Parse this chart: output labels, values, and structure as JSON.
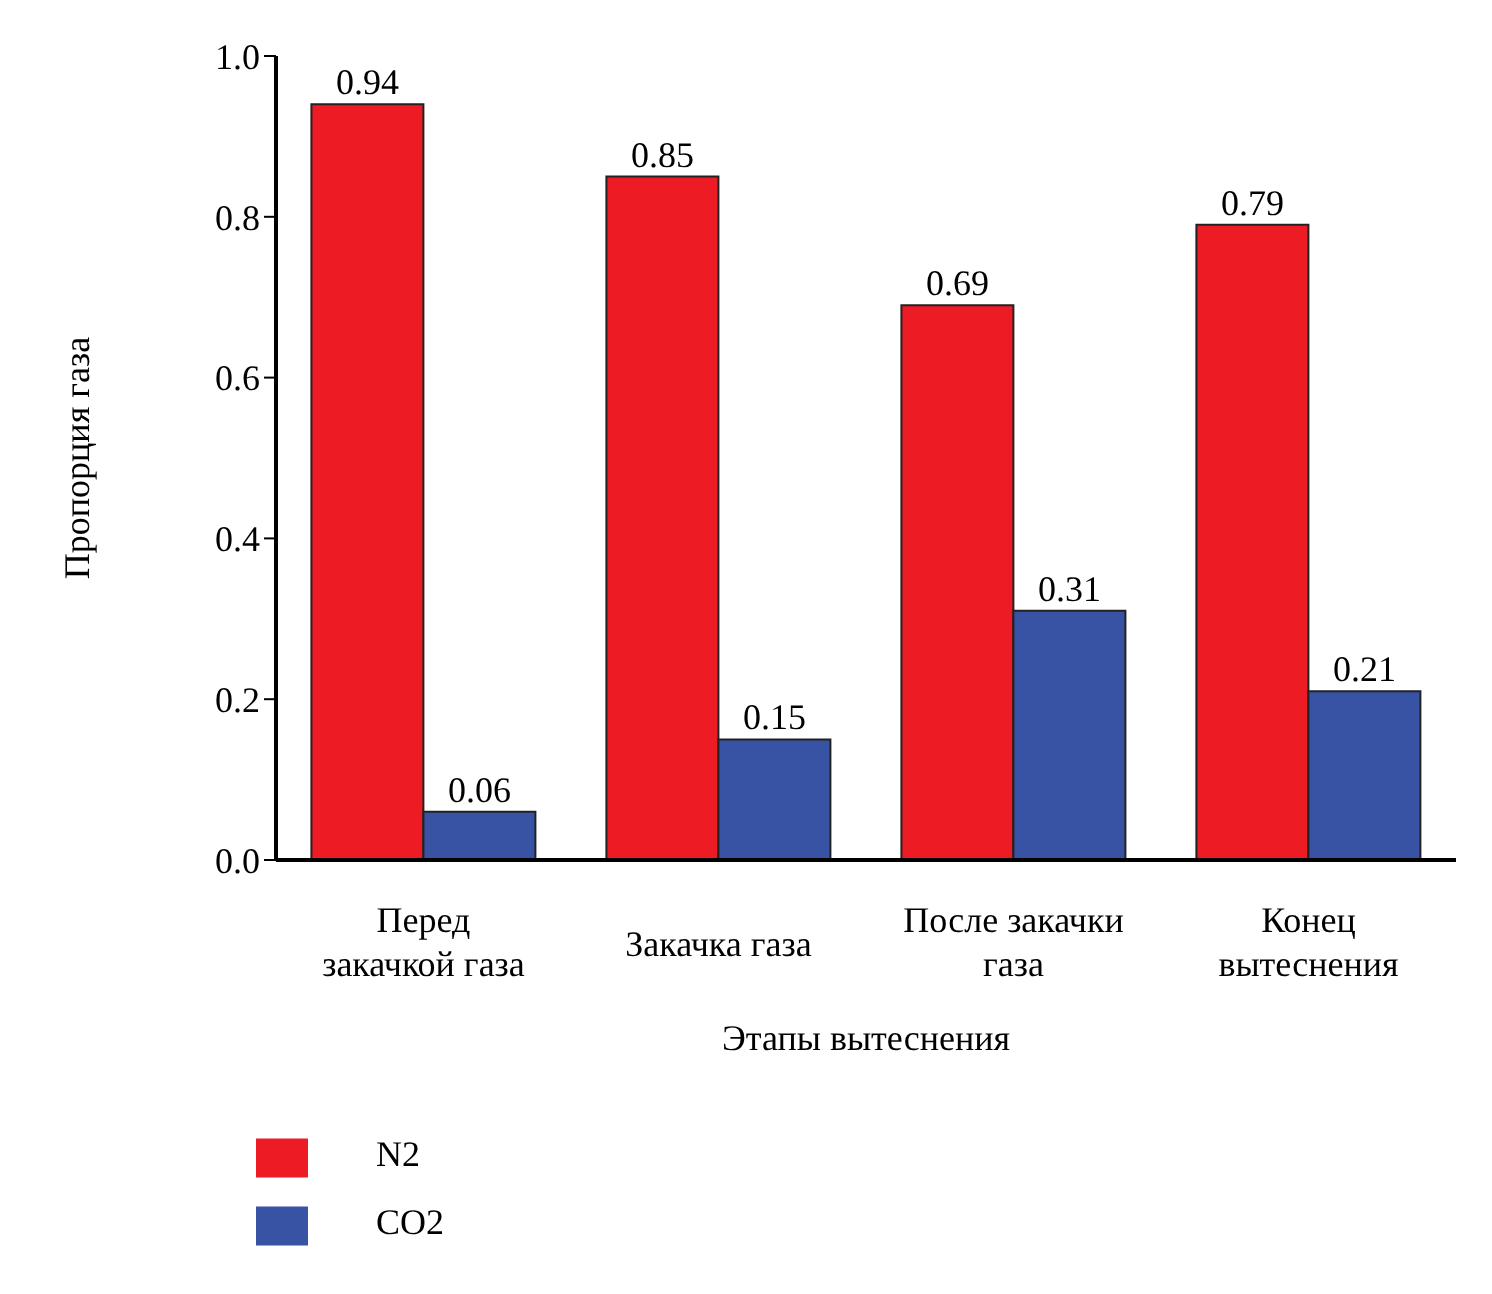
{
  "chart_data": {
    "type": "bar",
    "xlabel": "Этапы вытеснения",
    "ylabel": "Пропорция газа",
    "categories": [
      "Перед закачкой газа",
      "Закачка газа",
      "После закачки газа",
      "Конец вытеснения"
    ],
    "series": [
      {
        "name": "N2",
        "color": "#ed1c24",
        "values": [
          0.94,
          0.85,
          0.69,
          0.79
        ]
      },
      {
        "name": "CO2",
        "color": "#3953a4",
        "values": [
          0.06,
          0.15,
          0.31,
          0.21
        ]
      }
    ],
    "ylim": [
      0,
      1
    ],
    "yticks": [
      {
        "value": 0,
        "label": "0.0"
      },
      {
        "value": 0.2,
        "label": "0.2"
      },
      {
        "value": 0.4,
        "label": "0.4"
      },
      {
        "value": 0.6,
        "label": "0.6"
      },
      {
        "value": 0.8,
        "label": "0.8"
      },
      {
        "value": 1,
        "label": "1.0"
      }
    ],
    "data_labels": true,
    "grid": false,
    "legend": "bottom left"
  }
}
